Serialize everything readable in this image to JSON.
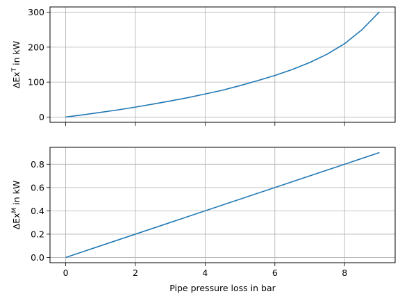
{
  "chart_data": [
    {
      "type": "line",
      "ylabel": "ΔEx",
      "ylabel_sup": "T",
      "ylabel_rest": " in kW",
      "xlabel": "",
      "xlim": [
        -0.45,
        9.45
      ],
      "ylim": [
        -15,
        315
      ],
      "xticks": [
        0,
        2,
        4,
        6,
        8
      ],
      "yticks": [
        0,
        100,
        200,
        300
      ],
      "ytick_labels": [
        "0",
        "100",
        "200",
        "300"
      ],
      "grid": true,
      "color": "#1f77b4",
      "series": [
        {
          "x": [
            0,
            0.5,
            1,
            1.5,
            2,
            2.5,
            3,
            3.5,
            4,
            4.5,
            5,
            5.5,
            6,
            6.5,
            7,
            7.5,
            8,
            8.5,
            9
          ],
          "values": [
            0,
            6.5,
            13.5,
            20.5,
            28.5,
            37,
            46,
            55.5,
            66,
            77,
            90,
            104,
            119,
            136,
            156,
            180,
            210,
            250,
            301
          ]
        }
      ]
    },
    {
      "type": "line",
      "ylabel": "ΔEx",
      "ylabel_sup": "M",
      "ylabel_rest": " in kW",
      "xlabel": "Pipe pressure loss in bar",
      "xlim": [
        -0.45,
        9.45
      ],
      "ylim": [
        -0.045,
        0.945
      ],
      "xticks": [
        0,
        2,
        4,
        6,
        8
      ],
      "xtick_labels": [
        "0",
        "2",
        "4",
        "6",
        "8"
      ],
      "yticks": [
        0.0,
        0.2,
        0.4,
        0.6,
        0.8
      ],
      "ytick_labels": [
        "0.0",
        "0.2",
        "0.4",
        "0.6",
        "0.8"
      ],
      "grid": true,
      "color": "#1f77b4",
      "series": [
        {
          "x": [
            0,
            9
          ],
          "values": [
            0,
            0.9
          ]
        }
      ]
    }
  ]
}
